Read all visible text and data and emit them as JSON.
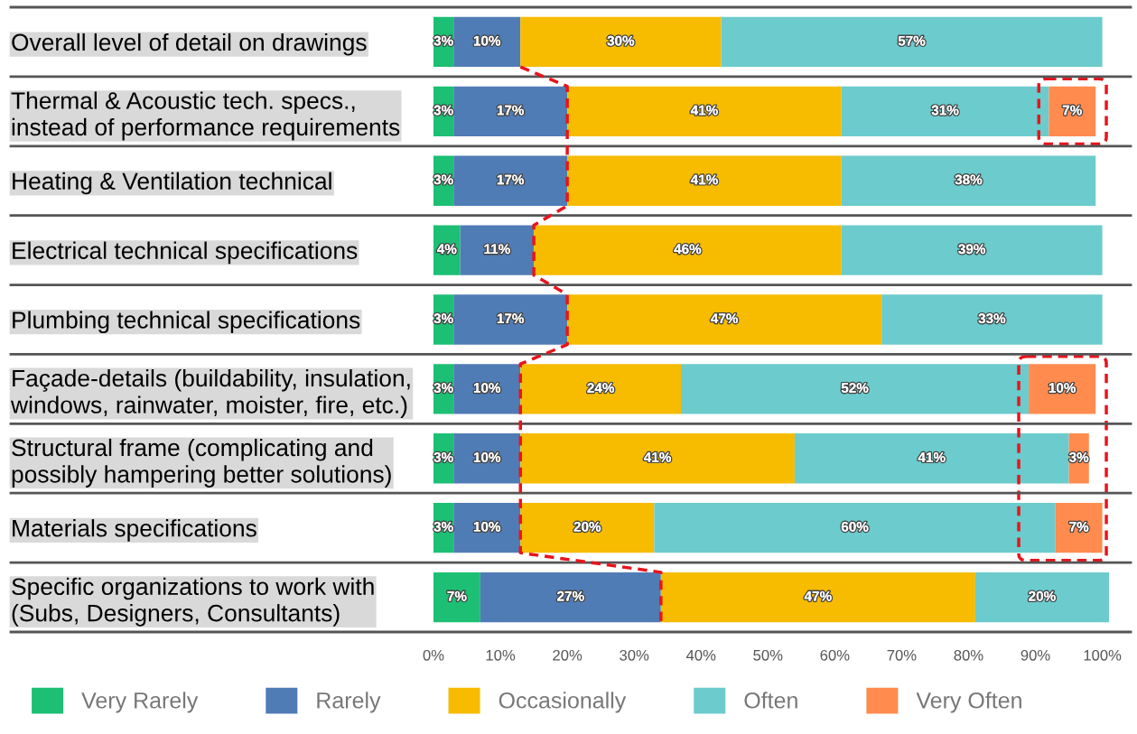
{
  "chart_data": {
    "type": "bar",
    "orientation": "horizontal",
    "stacked": true,
    "legend": "bottom",
    "grid": false,
    "categories": [
      "Overall level of detail on drawings",
      "Thermal & Acoustic tech. specs.,\ninstead of performance requirements",
      "Heating & Ventilation technical",
      "Electrical technical specifications",
      "Plumbing technical specifications",
      "Façade-details (buildability, insulation,\nwindows, rainwater, moister, fire, etc.)",
      "Structural frame (complicating and\npossibly hampering better solutions)",
      "Materials specifications",
      "Specific organizations to work with\n(Subs, Designers, Consultants)"
    ],
    "series": [
      {
        "name": "Very Rarely",
        "color": "#1cbf73",
        "values": [
          3,
          3,
          3,
          4,
          3,
          3,
          3,
          3,
          7
        ],
        "value_labels": [
          "3%",
          "3%",
          "3%",
          "4%",
          "3%",
          "3%",
          "3%",
          "3%",
          "7%"
        ]
      },
      {
        "name": "Rarely",
        "color": "#507cb6",
        "values": [
          10,
          17,
          17,
          11,
          17,
          10,
          10,
          10,
          27
        ],
        "value_labels": [
          "10%",
          "17%",
          "17%",
          "11%",
          "17%",
          "10%",
          "10%",
          "10%",
          "27%"
        ]
      },
      {
        "name": "Occasionally",
        "color": "#f7bb00",
        "values": [
          30,
          41,
          41,
          46,
          47,
          24,
          41,
          20,
          47
        ],
        "value_labels": [
          "30%",
          "41%",
          "41%",
          "46%",
          "47%",
          "24%",
          "41%",
          "20%",
          "47%"
        ]
      },
      {
        "name": "Often",
        "color": "#6ccbcc",
        "values": [
          57,
          31,
          38,
          39,
          33,
          52,
          41,
          60,
          20
        ],
        "value_labels": [
          "57%",
          "31%",
          "38%",
          "39%",
          "33%",
          "52%",
          "41%",
          "60%",
          "20%"
        ]
      },
      {
        "name": "Very Often",
        "color": "#ff8b4f",
        "values": [
          null,
          7,
          null,
          null,
          null,
          10,
          3,
          7,
          null
        ],
        "value_labels": [
          null,
          "7%",
          null,
          null,
          null,
          "10%",
          "3%",
          "7%",
          null
        ]
      }
    ],
    "xlim": [
      0,
      101
    ],
    "xticks": [
      {
        "value": 0,
        "label": "0%"
      },
      {
        "value": 10,
        "label": "10%"
      },
      {
        "value": 20,
        "label": "20%"
      },
      {
        "value": 30,
        "label": "30%"
      },
      {
        "value": 40,
        "label": "40%"
      },
      {
        "value": 50,
        "label": "50%"
      },
      {
        "value": 60,
        "label": "60%"
      },
      {
        "value": 70,
        "label": "70%"
      },
      {
        "value": 80,
        "label": "80%"
      },
      {
        "value": 90,
        "label": "90%"
      },
      {
        "value": 100,
        "label": "100%"
      }
    ]
  }
}
